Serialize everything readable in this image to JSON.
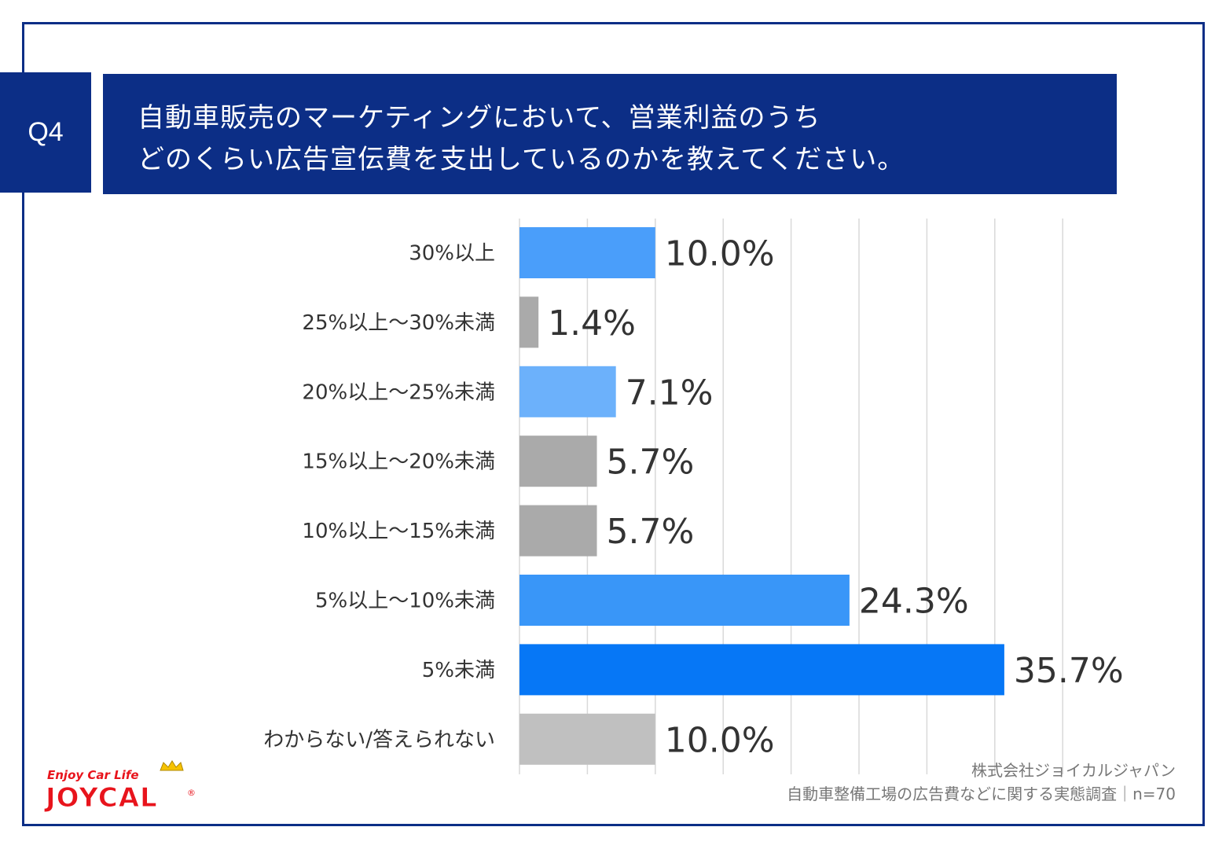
{
  "question": {
    "badge": "Q4",
    "line1": "自動車販売のマーケティングにおいて、営業利益のうち",
    "line2": "どのくらい広告宣伝費を支出しているのかを教えてください。"
  },
  "source": {
    "company": "株式会社ジョイカルジャパン",
    "survey": "自動車整備工場の広告費などに関する実態調査｜n=70"
  },
  "logo": {
    "tagline": "Enjoy Car Life",
    "brand": "JOYCAL",
    "mark": "®"
  },
  "colors": {
    "navy": "#0c2e86",
    "blue_1": "#4a9efa",
    "blue_2": "#6cb1fb",
    "blue_3": "#3996f8",
    "blue_4": "#0677f6",
    "gray": "#aaaaaa",
    "gray_light": "#c0c0c0",
    "logo_red": "#e8141c",
    "logo_yellow": "#f6c200"
  },
  "chart_data": {
    "type": "bar",
    "orientation": "horizontal",
    "categories": [
      "30%以上",
      "25%以上～30%未満",
      "20%以上～25%未満",
      "15%以上～20%未満",
      "10%以上～15%未満",
      "5%以上～10%未満",
      "5%未満",
      "わからない/答えられない"
    ],
    "values": [
      10.0,
      1.4,
      7.1,
      5.7,
      5.7,
      24.3,
      35.7,
      10.0
    ],
    "data_labels": [
      "10.0%",
      "1.4%",
      "7.1%",
      "5.7%",
      "5.7%",
      "24.3%",
      "35.7%",
      "10.0%"
    ],
    "bar_colors": [
      "#4a9efa",
      "#aaaaaa",
      "#6cb1fb",
      "#aaaaaa",
      "#aaaaaa",
      "#3996f8",
      "#0677f6",
      "#c0c0c0"
    ],
    "xlim": [
      0,
      40
    ],
    "grid": true,
    "legend": "none"
  }
}
